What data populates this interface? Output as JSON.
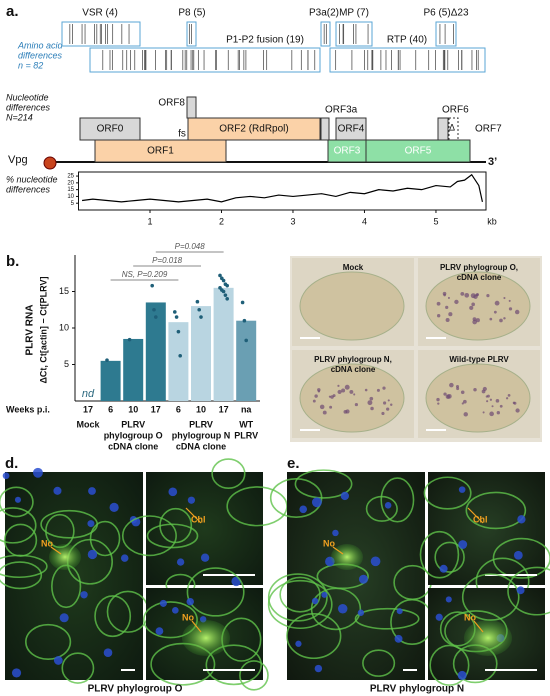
{
  "panel_a": {
    "label": "a.",
    "protein_note": [
      "Amino acid",
      "differences",
      "n = 82"
    ],
    "proteins": [
      "VSR (4)",
      "P8 (5)",
      "P3a(2)",
      "MP (7)",
      "P6 (5)Δ23",
      "P1-P2 fusion (19)",
      "RTP (40)"
    ],
    "nt_note": [
      "Nucleotide",
      "differences",
      "N=214"
    ],
    "orfs": [
      "ORF0",
      "ORF8",
      "ORF2 (RdRpol)",
      "ORF3a",
      "ORF4",
      "ORF6",
      "ORF7",
      "ORF1",
      "ORF3",
      "ORF5"
    ],
    "fs": "fs",
    "delta": "Δ",
    "vpg": "Vpg",
    "end": "3’"
  },
  "chart_data": [
    {
      "type": "line",
      "ylabel": [
        "% nucleotide",
        "differences"
      ],
      "xlabel": "kb",
      "x": [
        0.05,
        0.2,
        0.4,
        0.6,
        0.8,
        1.0,
        1.2,
        1.4,
        1.6,
        1.8,
        2.0,
        2.2,
        2.4,
        2.6,
        2.8,
        3.0,
        3.2,
        3.4,
        3.6,
        3.8,
        4.0,
        4.2,
        4.4,
        4.6,
        4.8,
        5.0,
        5.2,
        5.3,
        5.4,
        5.5,
        5.6,
        5.65
      ],
      "values": [
        7,
        8,
        7,
        6,
        7,
        8,
        7,
        6,
        7,
        8,
        6,
        9,
        10,
        9,
        11,
        10,
        11,
        12,
        10,
        13,
        12,
        15,
        14,
        16,
        15,
        18,
        17,
        21,
        22,
        26,
        18,
        6
      ],
      "color": "#000000",
      "xlim": [
        0,
        5.7
      ],
      "xticks": [
        1,
        2,
        3,
        4,
        5
      ],
      "ylim": [
        0,
        28
      ],
      "yticks": [
        5,
        10,
        15,
        20,
        25
      ]
    },
    {
      "type": "bar",
      "label": "b.",
      "ylabel": [
        "PLRV RNA",
        "ΔCt, Ct[actin] − Ct[PLRV]"
      ],
      "x_title": "Weeks p.i.",
      "ylim": [
        0,
        20
      ],
      "yticks": [
        5,
        10,
        15
      ],
      "missing_label": "nd",
      "groups": [
        {
          "lines": [
            "Mock"
          ],
          "color": "#2e7a90",
          "categories": [
            "17"
          ],
          "values": [
            null
          ],
          "points": [
            []
          ]
        },
        {
          "lines": [
            "PLRV",
            "phylogroup O",
            "cDNA clone"
          ],
          "color": "#2e7a90",
          "categories": [
            "6",
            "10",
            "17"
          ],
          "values": [
            5.5,
            8.5,
            13.5
          ],
          "points": [
            [
              5.6
            ],
            [
              8.4
            ],
            [
              15.8,
              12.5,
              11.5
            ]
          ]
        },
        {
          "lines": [
            "PLRV",
            "phylogroup N",
            "cDNA clone"
          ],
          "color": "#b9d5e1",
          "categories": [
            "6",
            "10",
            "17"
          ],
          "values": [
            10.8,
            13,
            15.5
          ],
          "points": [
            [
              12.2,
              11.5,
              9.5,
              6.2
            ],
            [
              13.6,
              12.5,
              11.5
            ],
            [
              17.2,
              16.8,
              16.5,
              16,
              15.8,
              15.5,
              15.2,
              15,
              14.5,
              14
            ]
          ]
        },
        {
          "lines": [
            "WT",
            "PLRV"
          ],
          "color": "#6a9fb3",
          "categories": [
            "na"
          ],
          "values": [
            11
          ],
          "points": [
            [
              13.5,
              11,
              8.3
            ]
          ]
        }
      ],
      "comparisons": [
        "NS, P=0.209",
        "P=0.018",
        "P=0.048"
      ]
    }
  ],
  "panel_c": {
    "label": "c.",
    "tiles": [
      [
        "Mock"
      ],
      [
        "PLRV phylogroup O,",
        "cDNA clone"
      ],
      [
        "PLRV phylogroup N,",
        "cDNA clone"
      ],
      [
        "Wild-type PLRV"
      ]
    ]
  },
  "panel_d": {
    "label": "d.",
    "caption": "PLRV phylogroup O",
    "no": "No",
    "chl": "Chl"
  },
  "panel_e": {
    "label": "e.",
    "caption": "PLRV phylogroup N",
    "no": "No",
    "chl": "Chl"
  }
}
